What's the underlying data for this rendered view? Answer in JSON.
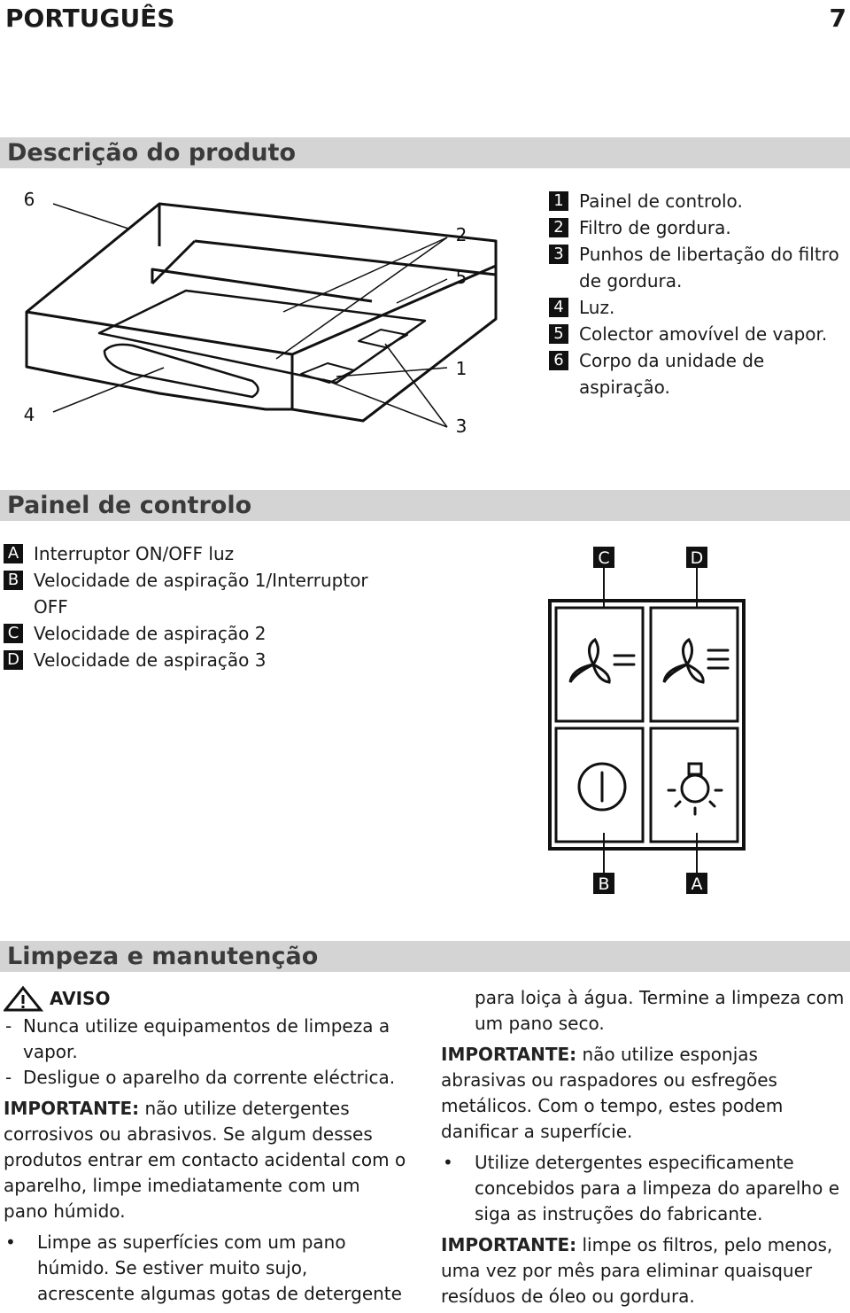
{
  "header": {
    "language": "PORTUGUÊS",
    "page": "7"
  },
  "product_description": {
    "title": "Descrição do produto",
    "callouts": [
      "6",
      "2",
      "5",
      "1",
      "4",
      "3"
    ],
    "items": [
      {
        "key": "1",
        "text": "Painel de controlo."
      },
      {
        "key": "2",
        "text": "Filtro de gordura."
      },
      {
        "key": "3",
        "text": "Punhos de libertação do filtro de gordura."
      },
      {
        "key": "4",
        "text": "Luz."
      },
      {
        "key": "5",
        "text": "Colector amovível de vapor."
      },
      {
        "key": "6",
        "text": "Corpo da unidade de aspiração."
      }
    ]
  },
  "control_panel": {
    "title": "Painel de controlo",
    "items": [
      {
        "key": "A",
        "text": "Interruptor ON/OFF luz"
      },
      {
        "key": "B",
        "text": "Velocidade de aspiração 1/Interruptor OFF"
      },
      {
        "key": "C",
        "text": "Velocidade de aspiração 2"
      },
      {
        "key": "D",
        "text": "Velocidade de aspiração 3"
      }
    ],
    "panel_labels": [
      "C",
      "D",
      "B",
      "A"
    ]
  },
  "cleaning": {
    "title": "Limpeza e manutenção",
    "warning": "AVISO",
    "warning_items": [
      "Nunca utilize equipamentos de limpeza a vapor.",
      "Desligue o aparelho da corrente eléctrica."
    ],
    "important_1": {
      "label": "IMPORTANTE:",
      "text": "não utilize detergentes corrosivos ou abrasivos. Se algum desses produtos entrar em contacto acidental com o aparelho, limpe imediatamente com um pano húmido."
    },
    "bullet_1": "Limpe as superfícies com um pano húmido. Se estiver muito sujo, acrescente algumas gotas de detergente para loiça à água. Termine a limpeza com um pano seco.",
    "important_2": {
      "label": "IMPORTANTE:",
      "text": "não utilize esponjas abrasivas ou raspadores ou esfregões metálicos. Com o tempo, estes podem danificar a superfície."
    },
    "bullet_2": "Utilize detergentes especificamente concebidos para a limpeza do aparelho e siga as instruções do fabricante.",
    "important_3": {
      "label": "IMPORTANTE:",
      "text": "limpe os filtros, pelo menos, uma vez por mês para eliminar quaisquer resíduos de óleo ou gordura."
    }
  }
}
